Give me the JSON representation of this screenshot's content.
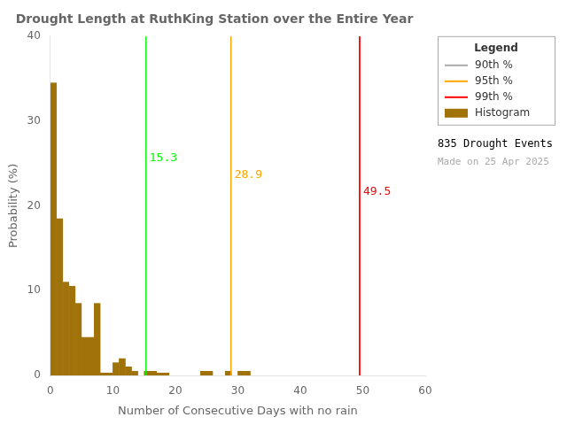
{
  "chart_data": {
    "type": "histogram",
    "title": "Drought Length at RuthKing Station over the Entire Year",
    "xlabel": "Number of Consecutive Days with no rain",
    "ylabel": "Probability (%)",
    "name": "Histogram",
    "color": "#A0720A",
    "bins": [
      0,
      1,
      2,
      3,
      4,
      5,
      6,
      7,
      8,
      9,
      10,
      11,
      12,
      13,
      14,
      15,
      16,
      17,
      18,
      19,
      20,
      21,
      22,
      23,
      24,
      25,
      26,
      27,
      28,
      29,
      30,
      31,
      32,
      33,
      34,
      35,
      36,
      37,
      38,
      39,
      40,
      41,
      42,
      43,
      44,
      45,
      46,
      47,
      48,
      49,
      50,
      51,
      52,
      53,
      54,
      55,
      56,
      57,
      58,
      59
    ],
    "values": [
      34.5,
      18.5,
      11.0,
      10.5,
      8.5,
      4.5,
      4.5,
      8.5,
      0.3,
      0.3,
      1.5,
      2.0,
      1.0,
      0.5,
      0.0,
      0.5,
      0.5,
      0.3,
      0.3,
      0.0,
      0.0,
      0.0,
      0.0,
      0.0,
      0.5,
      0.5,
      0.0,
      0.0,
      0.5,
      0.0,
      0.5,
      0.5,
      0.0,
      0.0,
      0.0,
      0.0,
      0.0,
      0.0,
      0.0,
      0.0,
      0.0,
      0.0,
      0.0,
      0.0,
      0.0,
      0.0,
      0.0,
      0.0,
      0.0,
      0.0,
      0.0,
      0.0,
      0.0,
      0.0,
      0.0,
      0.0,
      0.0,
      0.0,
      0.0
    ],
    "xlim": [
      0,
      60
    ],
    "ylim": [
      0,
      40
    ],
    "xticks": [
      0,
      10,
      20,
      30,
      40,
      50,
      60
    ],
    "yticks": [
      0,
      10,
      20,
      30,
      40
    ],
    "grid": false,
    "legend": "upper right",
    "legend_title": "Legend",
    "lines": [
      {
        "name": "90th %",
        "value": 15.3,
        "color": "#00FF00",
        "legend_color": "#AAAAAA"
      },
      {
        "name": "95th %",
        "value": 28.9,
        "color": "#FFA500"
      },
      {
        "name": "99th %",
        "value": 49.5,
        "color": "#FF0000"
      }
    ],
    "annotations": [
      {
        "text": "835 Drought Events"
      },
      {
        "text": "Made on 25 Apr 2025",
        "color": "#AAAAAA"
      }
    ]
  }
}
